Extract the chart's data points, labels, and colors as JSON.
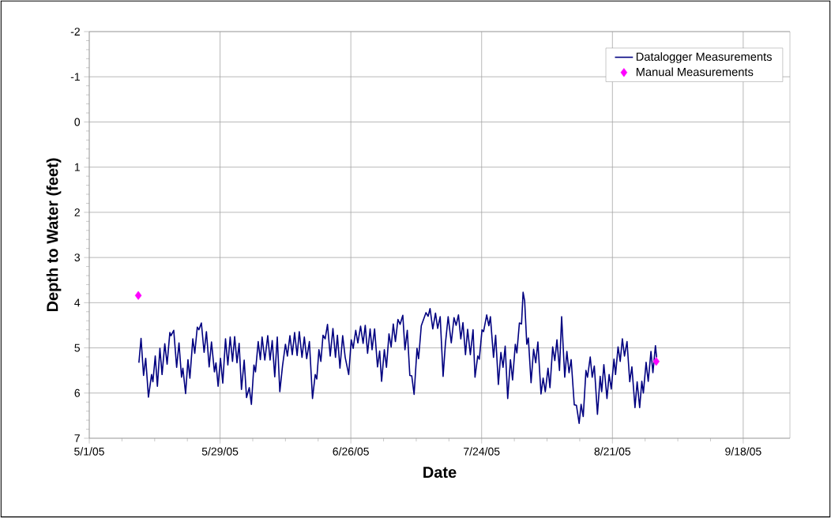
{
  "chart_data": {
    "type": "line",
    "xlabel": "Date",
    "ylabel": "Depth to Water (feet)",
    "xlim": [
      "2005-05-01",
      "2005-09-28"
    ],
    "xticks": [
      {
        "value": "2005-05-01",
        "label": "5/1/05"
      },
      {
        "value": "2005-05-29",
        "label": "5/29/05"
      },
      {
        "value": "2005-06-26",
        "label": "6/26/05"
      },
      {
        "value": "2005-07-24",
        "label": "7/24/05"
      },
      {
        "value": "2005-08-21",
        "label": "8/21/05"
      },
      {
        "value": "2005-09-18",
        "label": "9/18/05"
      }
    ],
    "ylim": [
      7,
      -2
    ],
    "yticks": [
      -2,
      -1,
      0,
      1,
      2,
      3,
      4,
      5,
      6,
      7
    ],
    "grid": true,
    "legend": "top right",
    "series": [
      {
        "name": "Datalogger Measurements",
        "color": "#000080",
        "marker": "none",
        "line_style": "solid",
        "x": [
          "2005-05-11T15:00",
          "2005-05-12T02:00",
          "2005-05-12T15:00",
          "2005-05-13T02:00",
          "2005-05-13T16:00",
          "2005-05-14T08:00",
          "2005-05-14T15:00",
          "2005-05-15T03:00",
          "2005-05-15T14:00",
          "2005-05-16T03:00",
          "2005-05-16T14:00",
          "2005-05-17T04:00",
          "2005-05-17T16:00",
          "2005-05-18T06:00",
          "2005-05-18T12:00",
          "2005-05-19T02:00",
          "2005-05-19T17:00",
          "2005-05-20T05:00",
          "2005-05-20T18:00",
          "2005-05-21T01:00",
          "2005-05-21T15:00",
          "2005-05-22T03:00",
          "2005-05-22T13:00",
          "2005-05-23T04:00",
          "2005-05-23T14:00",
          "2005-05-24T03:00",
          "2005-05-24T11:00",
          "2005-05-25T00:00",
          "2005-05-25T14:00",
          "2005-05-26T02:00",
          "2005-05-26T16:00",
          "2005-05-27T04:00",
          "2005-05-27T19:00",
          "2005-05-28T03:00",
          "2005-05-28T14:00",
          "2005-05-29T02:00",
          "2005-05-29T14:00",
          "2005-05-30T04:00",
          "2005-05-30T16:00",
          "2005-05-31T04:00",
          "2005-05-31T16:00",
          "2005-06-01T03:00",
          "2005-06-01T15:00",
          "2005-06-02T02:00",
          "2005-06-02T14:00",
          "2005-06-03T04:00",
          "2005-06-03T16:00",
          "2005-06-04T06:00",
          "2005-06-04T17:00",
          "2005-06-05T06:00",
          "2005-06-05T14:00",
          "2005-06-06T04:00",
          "2005-06-06T15:00",
          "2005-06-07T00:00",
          "2005-06-07T14:00",
          "2005-06-08T05:00",
          "2005-06-08T17:00",
          "2005-06-09T04:00",
          "2005-06-09T17:00",
          "2005-06-10T06:00",
          "2005-06-10T19:00",
          "2005-06-11T09:00",
          "2005-06-12T00:00",
          "2005-06-12T10:00",
          "2005-06-12T23:00",
          "2005-06-13T11:00",
          "2005-06-13T23:00",
          "2005-06-14T12:00",
          "2005-06-14T23:00",
          "2005-06-15T13:00",
          "2005-06-16T01:00",
          "2005-06-16T13:00",
          "2005-06-17T03:00",
          "2005-06-17T19:00",
          "2005-06-18T09:00",
          "2005-06-18T17:00",
          "2005-06-19T04:00",
          "2005-06-19T14:00",
          "2005-06-20T01:00",
          "2005-06-20T12:00",
          "2005-06-21T00:00",
          "2005-06-21T14:00",
          "2005-06-22T04:00",
          "2005-06-22T17:00",
          "2005-06-23T03:00",
          "2005-06-23T16:00",
          "2005-06-24T06:00",
          "2005-06-24T19:00",
          "2005-06-25T13:00",
          "2005-06-26T02:00",
          "2005-06-26T12:00",
          "2005-06-27T01:00",
          "2005-06-27T12:00",
          "2005-06-28T02:00",
          "2005-06-28T15:00",
          "2005-06-29T02:00",
          "2005-06-29T14:00",
          "2005-06-30T03:00",
          "2005-06-30T13:00",
          "2005-07-01T02:00",
          "2005-07-01T17:00",
          "2005-07-02T04:00",
          "2005-07-02T14:00",
          "2005-07-03T04:00",
          "2005-07-03T15:00",
          "2005-07-04T04:00",
          "2005-07-04T15:00",
          "2005-07-05T02:00",
          "2005-07-05T13:00",
          "2005-07-06T02:00",
          "2005-07-06T13:00",
          "2005-07-07T03:00",
          "2005-07-07T14:00",
          "2005-07-08T02:00",
          "2005-07-08T15:00",
          "2005-07-09T01:00",
          "2005-07-09T13:00",
          "2005-07-10T04:00",
          "2005-07-10T12:00",
          "2005-07-11T02:00",
          "2005-07-12T02:00",
          "2005-07-12T13:00",
          "2005-07-12T23:00",
          "2005-07-13T13:00",
          "2005-07-14T03:00",
          "2005-07-14T14:00",
          "2005-07-15T03:00",
          "2005-07-15T18:00",
          "2005-07-16T06:00",
          "2005-07-16T20:00",
          "2005-07-17T12:00",
          "2005-07-18T02:00",
          "2005-07-18T13:00",
          "2005-07-19T01:00",
          "2005-07-19T13:00",
          "2005-07-20T00:00",
          "2005-07-20T13:00",
          "2005-07-21T00:00",
          "2005-07-21T14:00",
          "2005-07-22T04:00",
          "2005-07-22T14:00",
          "2005-07-23T04:00",
          "2005-07-23T12:00",
          "2005-07-24T02:00",
          "2005-07-24T10:00",
          "2005-07-25T02:00",
          "2005-07-25T13:00",
          "2005-07-25T21:00",
          "2005-07-26T13:00",
          "2005-07-27T00:00",
          "2005-07-27T14:00",
          "2005-07-28T03:00",
          "2005-07-28T14:00",
          "2005-07-29T01:00",
          "2005-07-29T14:00",
          "2005-07-30T04:00",
          "2005-07-30T15:00",
          "2005-07-31T05:00",
          "2005-07-31T13:00",
          "2005-08-01T02:00",
          "2005-08-01T13:00",
          "2005-08-01T21:00",
          "2005-08-02T05:00",
          "2005-08-02T16:00",
          "2005-08-03T00:00",
          "2005-08-03T14:00",
          "2005-08-04T03:00",
          "2005-08-04T14:00",
          "2005-08-05T01:00",
          "2005-08-05T17:00",
          "2005-08-06T04:00",
          "2005-08-06T15:00",
          "2005-08-07T05:00",
          "2005-08-07T15:00",
          "2005-08-08T05:00",
          "2005-08-08T16:00",
          "2005-08-09T03:00",
          "2005-08-09T16:00",
          "2005-08-10T03:00",
          "2005-08-10T19:00",
          "2005-08-11T06:00",
          "2005-08-11T17:00",
          "2005-08-12T04:00",
          "2005-08-12T20:00",
          "2005-08-13T07:00",
          "2005-08-13T21:00",
          "2005-08-14T07:00",
          "2005-08-14T18:00",
          "2005-08-15T08:00",
          "2005-08-15T16:00",
          "2005-08-16T06:00",
          "2005-08-16T16:00",
          "2005-08-17T03:00",
          "2005-08-17T19:00",
          "2005-08-18T09:00",
          "2005-08-18T17:00",
          "2005-08-19T04:00",
          "2005-08-19T20:00",
          "2005-08-20T07:00",
          "2005-08-20T18:00",
          "2005-08-21T08:00",
          "2005-08-21T16:00",
          "2005-08-22T05:00",
          "2005-08-22T16:00",
          "2005-08-23T03:00",
          "2005-08-23T14:00",
          "2005-08-24T03:00",
          "2005-08-24T17:00",
          "2005-08-25T04:00",
          "2005-08-25T20:00",
          "2005-08-26T07:00",
          "2005-08-26T20:00",
          "2005-08-27T07:00",
          "2005-08-27T15:00",
          "2005-08-28T05:00",
          "2005-08-28T16:00",
          "2005-08-29T06:00",
          "2005-08-29T16:00",
          "2005-08-30T05:00",
          "2005-08-30T11:00"
        ],
        "values": [
          5.33,
          4.79,
          5.61,
          5.23,
          6.09,
          5.59,
          5.75,
          5.18,
          5.85,
          5.01,
          5.59,
          4.91,
          5.36,
          4.66,
          4.73,
          4.61,
          5.43,
          4.89,
          5.65,
          5.45,
          6.01,
          5.26,
          5.67,
          4.8,
          5.12,
          4.54,
          4.6,
          4.45,
          5.1,
          4.64,
          5.42,
          4.87,
          5.53,
          5.33,
          5.85,
          5.23,
          5.78,
          4.8,
          5.38,
          4.76,
          5.3,
          4.75,
          5.33,
          4.9,
          5.92,
          5.27,
          6.1,
          5.88,
          6.25,
          5.38,
          5.53,
          4.86,
          5.26,
          4.76,
          5.27,
          4.73,
          5.27,
          4.84,
          5.64,
          4.76,
          5.97,
          5.4,
          4.92,
          5.18,
          4.73,
          5.15,
          4.66,
          5.17,
          4.64,
          5.21,
          4.76,
          5.24,
          4.86,
          6.12,
          5.59,
          5.69,
          5.04,
          5.3,
          4.72,
          4.8,
          4.48,
          5.18,
          4.57,
          5.21,
          4.72,
          5.45,
          4.73,
          5.21,
          5.59,
          4.82,
          5.01,
          4.61,
          4.89,
          4.52,
          4.9,
          4.5,
          5.12,
          4.58,
          5.04,
          4.58,
          5.42,
          5.07,
          5.74,
          5.04,
          5.43,
          4.69,
          4.98,
          4.47,
          4.86,
          4.37,
          4.48,
          4.28,
          5.04,
          4.61,
          5.61,
          5.62,
          6.03,
          5.01,
          5.24,
          4.51,
          4.22,
          4.3,
          4.13,
          4.58,
          4.23,
          4.57,
          4.31,
          5.63,
          4.9,
          4.31,
          4.89,
          4.33,
          4.5,
          4.27,
          4.8,
          4.44,
          5.15,
          4.59,
          5.15,
          4.6,
          5.65,
          5.18,
          5.25,
          4.6,
          4.64,
          4.27,
          4.51,
          4.31,
          5.21,
          4.72,
          5.81,
          5.1,
          5.43,
          4.96,
          6.12,
          5.26,
          5.71,
          4.92,
          5.11,
          4.45,
          4.47,
          3.77,
          3.96,
          4.92,
          4.78,
          5.77,
          5.03,
          5.33,
          4.87,
          6.02,
          5.67,
          5.97,
          5.45,
          5.88,
          4.98,
          5.28,
          4.82,
          5.5,
          4.31,
          5.65,
          5.08,
          5.55,
          5.26,
          6.26,
          6.27,
          6.67,
          6.25,
          6.52,
          5.5,
          5.65,
          5.2,
          5.65,
          5.4,
          6.47,
          5.63,
          5.97,
          5.37,
          6.12,
          5.59,
          5.91,
          5.25,
          5.59,
          4.98,
          5.3,
          4.8,
          5.18,
          4.86,
          5.75,
          5.42,
          6.32,
          5.75,
          6.32,
          5.74,
          6.0,
          5.32,
          5.74,
          5.08,
          5.55,
          4.95,
          5.21
        ]
      },
      {
        "name": "Manual Measurements",
        "type": "scatter",
        "color": "#ff00ff",
        "marker": "diamond",
        "x": [
          "2005-05-11T12:00",
          "2005-08-30T09:00"
        ],
        "values": [
          3.84,
          5.3
        ]
      }
    ]
  }
}
